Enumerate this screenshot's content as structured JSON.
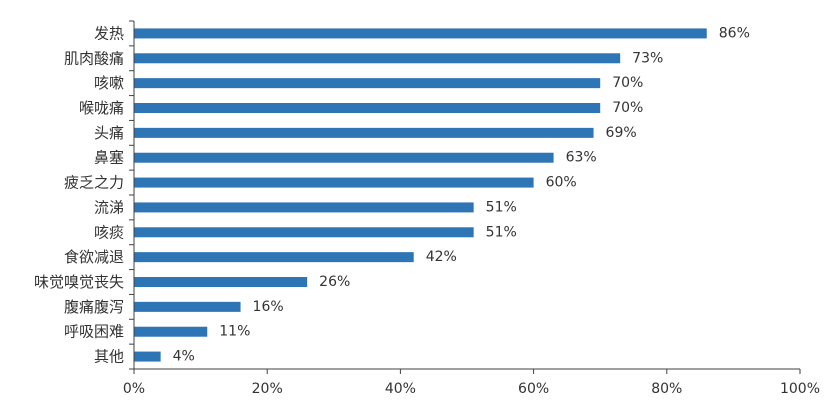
{
  "chart_data": {
    "type": "bar",
    "orientation": "horizontal",
    "categories": [
      "发热",
      "肌肉酸痛",
      "咳嗽",
      "喉咙痛",
      "头痛",
      "鼻塞",
      "疲乏之力",
      "流涕",
      "咳痰",
      "食欲减退",
      "味觉嗅觉丧失",
      "腹痛腹泻",
      "呼吸困难",
      "其他"
    ],
    "values": [
      86,
      73,
      70,
      70,
      69,
      63,
      60,
      51,
      51,
      42,
      26,
      16,
      11,
      4
    ],
    "value_labels": [
      "86%",
      "73%",
      "70%",
      "70%",
      "69%",
      "63%",
      "60%",
      "51%",
      "51%",
      "42%",
      "26%",
      "16%",
      "11%",
      "4%"
    ],
    "xlim": [
      0,
      100
    ],
    "x_ticks": [
      0,
      20,
      40,
      60,
      80,
      100
    ],
    "x_tick_labels": [
      "0%",
      "20%",
      "40%",
      "60%",
      "80%",
      "100%"
    ],
    "title": "",
    "xlabel": "",
    "ylabel": "",
    "grid": false,
    "bar_color": "#2E75B6",
    "axis_color": "#404040"
  }
}
